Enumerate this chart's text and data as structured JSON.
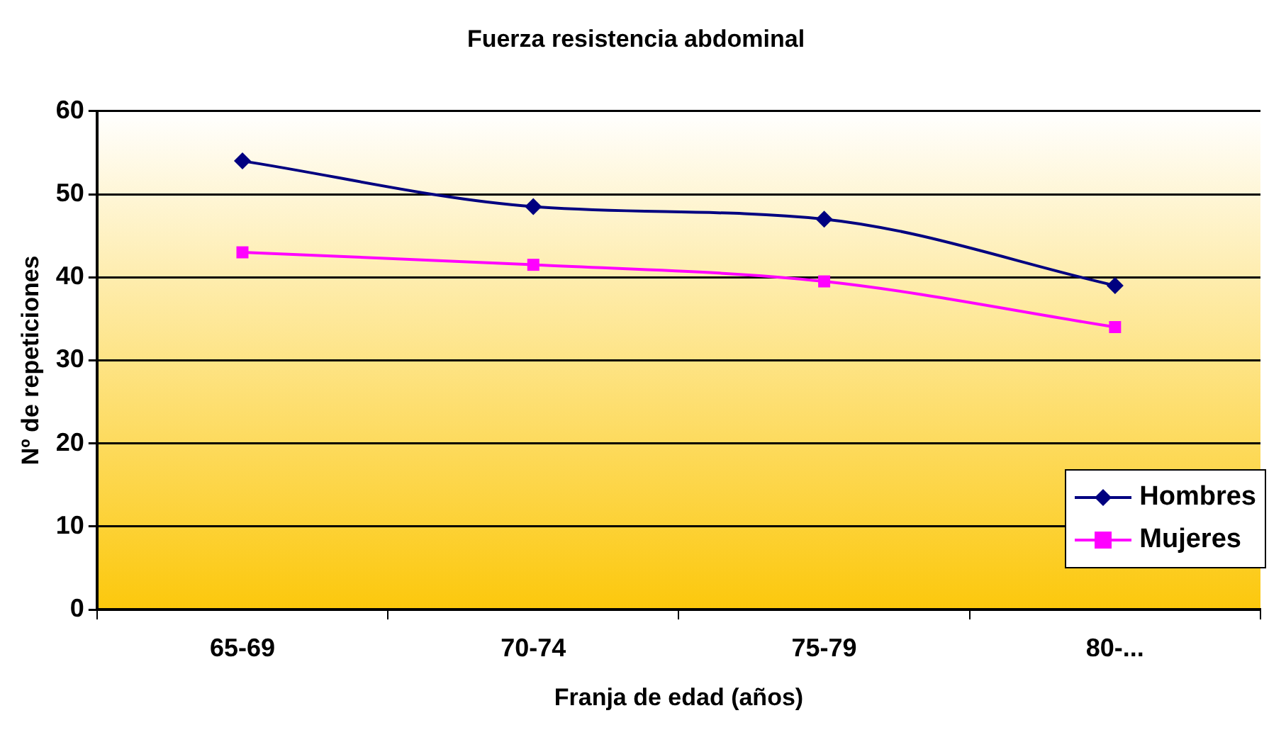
{
  "chart_data": {
    "type": "line",
    "title": "Fuerza resistencia abdominal",
    "xlabel": "Franja de edad (años)",
    "ylabel": "Nº de repeticiones",
    "categories": [
      "65-69",
      "70-74",
      "75-79",
      "80-..."
    ],
    "series": [
      {
        "name": "Hombres",
        "color": "#000080",
        "marker": "diamond",
        "values": [
          54,
          48.5,
          47,
          39
        ]
      },
      {
        "name": "Mujeres",
        "color": "#ff00ff",
        "marker": "square",
        "values": [
          43,
          41.5,
          39.5,
          34
        ]
      }
    ],
    "ylim": [
      0,
      60
    ],
    "yticks": [
      0,
      10,
      20,
      30,
      40,
      50,
      60
    ],
    "grid": "y",
    "legend": "bottom right"
  }
}
